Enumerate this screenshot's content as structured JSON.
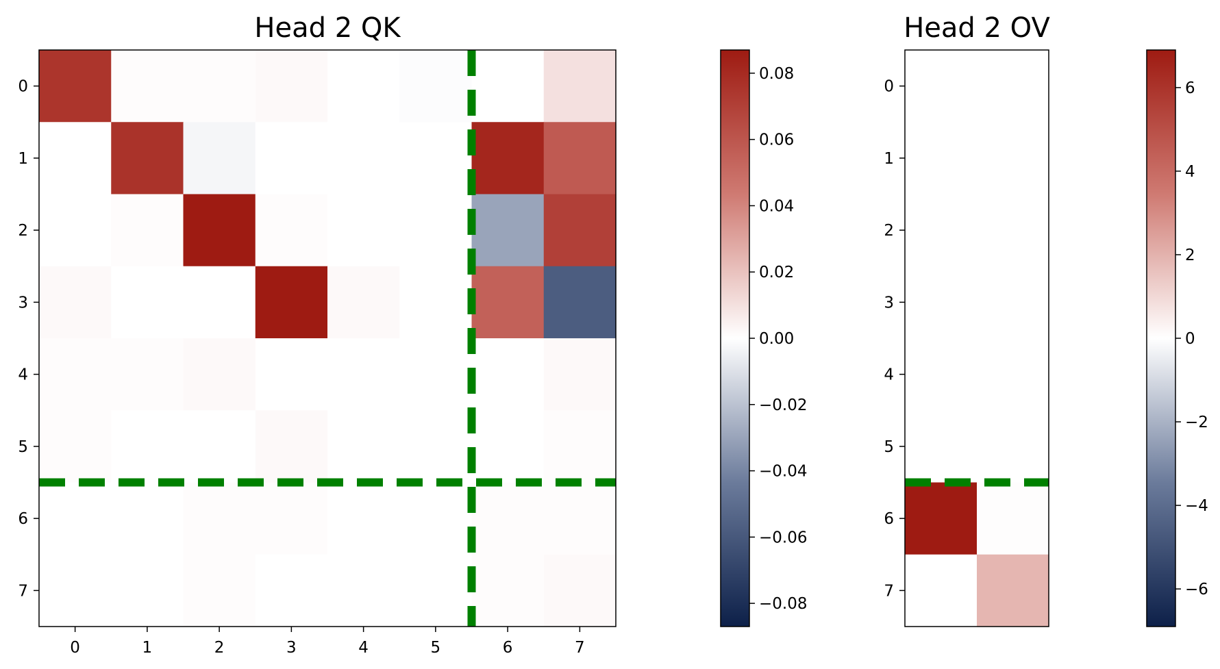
{
  "chart_data": [
    {
      "type": "heatmap",
      "title": "Head 2 QK",
      "x_ticks": [
        "0",
        "1",
        "2",
        "3",
        "4",
        "5",
        "6",
        "7"
      ],
      "y_ticks": [
        "0",
        "1",
        "2",
        "3",
        "4",
        "5",
        "6",
        "7"
      ],
      "values": [
        [
          0.075,
          0.001,
          0.001,
          0.002,
          0.0,
          -0.001,
          0.0,
          0.01
        ],
        [
          0.0,
          0.076,
          -0.003,
          0.0,
          0.0,
          0.0,
          0.082,
          0.058
        ],
        [
          0.0,
          0.001,
          0.088,
          0.001,
          0.0,
          0.0,
          -0.03,
          0.07
        ],
        [
          0.002,
          0.0,
          0.0,
          0.087,
          0.002,
          0.0,
          0.055,
          -0.058
        ],
        [
          0.001,
          0.001,
          0.002,
          0.0,
          0.0,
          0.0,
          0.0,
          0.002
        ],
        [
          0.001,
          0.0,
          0.0,
          0.002,
          0.0,
          0.0,
          0.0,
          0.001
        ],
        [
          0.0,
          0.0,
          0.001,
          0.001,
          0.0,
          0.0,
          0.001,
          0.001
        ],
        [
          0.0,
          0.0,
          0.001,
          0.0,
          0.0,
          0.0,
          0.001,
          0.002
        ]
      ],
      "colorbar": {
        "ticks": [
          0.08,
          0.06,
          0.04,
          0.02,
          0.0,
          -0.02,
          -0.04,
          -0.06,
          -0.08
        ],
        "tick_labels": [
          "0.08",
          "0.06",
          "0.04",
          "0.02",
          "0.00",
          "−0.02",
          "−0.04",
          "−0.06",
          "−0.08"
        ],
        "range": [
          -0.087,
          0.087
        ]
      },
      "dashed_lines": [
        {
          "orientation": "vertical",
          "at": 5.5
        },
        {
          "orientation": "horizontal",
          "at": 5.5
        }
      ],
      "colormap": {
        "low": "#0d2049",
        "mid": "#ffffff",
        "high": "#9e1b12"
      }
    },
    {
      "type": "heatmap",
      "title": "Head 2 OV",
      "x_ticks": [],
      "y_ticks": [
        "0",
        "1",
        "2",
        "3",
        "4",
        "5",
        "6",
        "7"
      ],
      "values": [
        [
          0,
          0
        ],
        [
          0,
          0
        ],
        [
          0,
          0
        ],
        [
          0,
          0
        ],
        [
          0,
          0
        ],
        [
          0,
          0
        ],
        [
          6.9,
          0.05
        ],
        [
          0.0,
          1.9
        ]
      ],
      "colorbar": {
        "ticks": [
          6,
          4,
          2,
          0,
          -2,
          -4,
          -6
        ],
        "tick_labels": [
          "6",
          "4",
          "2",
          "0",
          "−2",
          "−4",
          "−6"
        ],
        "range": [
          -6.9,
          6.9
        ]
      },
      "dashed_lines": [
        {
          "orientation": "horizontal",
          "at": 5.5
        }
      ],
      "colormap": {
        "low": "#0d2049",
        "mid": "#ffffff",
        "high": "#9e1b12"
      }
    }
  ],
  "colors": {
    "dashed_line": "#008000",
    "frame": "#000000"
  }
}
